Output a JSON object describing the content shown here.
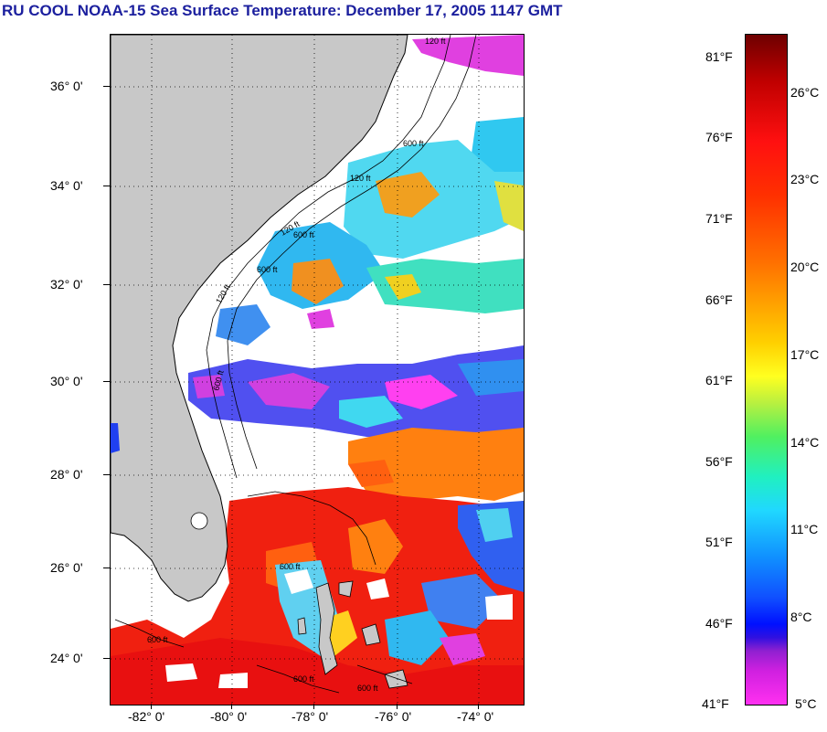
{
  "title": "RU COOL  NOAA-15  Sea Surface Temperature:  December 17, 2005 1147 GMT",
  "map": {
    "lat_labels": [
      "36° 0'",
      "34° 0'",
      "32° 0'",
      "30° 0'",
      "28° 0'",
      "26° 0'",
      "24° 0'"
    ],
    "lon_labels": [
      "-82° 0'",
      "-80° 0'",
      "-78° 0'",
      "-76° 0'",
      "-74° 0'"
    ],
    "contour_labels": [
      "120 ft",
      "600 ft",
      "120 ft",
      "600 ft",
      "120 ft",
      "600 ft",
      "120 ft",
      "600 ft",
      "600 ft",
      "600 ft",
      "600 ft",
      "600 ft"
    ],
    "land_color": "#c8c8c8",
    "cloud_color": "#ffffff",
    "grid": "dotted"
  },
  "colorbar": {
    "fahrenheit": [
      "81°F",
      "76°F",
      "71°F",
      "66°F",
      "61°F",
      "56°F",
      "51°F",
      "46°F",
      "41°F"
    ],
    "celsius": [
      "26°C",
      "23°C",
      "20°C",
      "17°C",
      "14°C",
      "11°C",
      "8°C",
      "5°C"
    ]
  }
}
